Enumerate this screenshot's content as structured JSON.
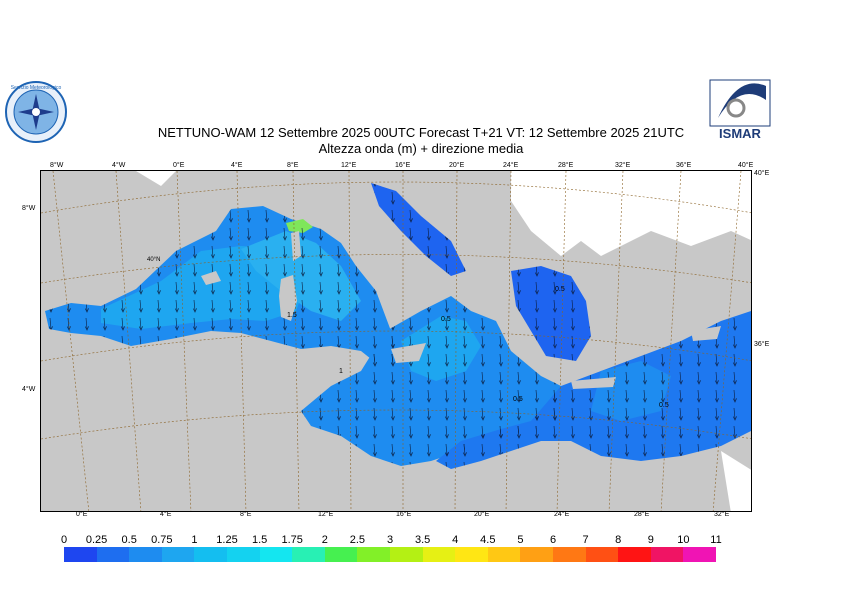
{
  "title": {
    "line1": "NETTUNO-WAM  12 Settembre 2025 00UTC Forecast T+21 VT: 12 Settembre 2025 21UTC",
    "line2": "Altezza onda (m) + direzione media"
  },
  "logos": {
    "left_name": "Servizio Meteorologico",
    "right_name": "ISMAR"
  },
  "map": {
    "top_lon_labels": [
      "8°W",
      "4°W",
      "0°E",
      "4°E",
      "8°E",
      "12°E",
      "16°E",
      "20°E",
      "24°E",
      "28°E",
      "32°E",
      "36°E",
      "40°E"
    ],
    "bottom_lon_labels": [
      "0°E",
      "4°E",
      "8°E",
      "12°E",
      "16°E",
      "20°E",
      "24°E",
      "28°E",
      "32°E"
    ],
    "left_lat_labels": [
      "8°W",
      "4°W"
    ],
    "right_lat_labels": [
      "40°E",
      "36°E"
    ],
    "inner_labels": [
      "40°N"
    ],
    "contour_labels": [
      "1.5",
      "1",
      "0.5",
      "0.5",
      "0.5",
      "0.5"
    ],
    "colors": {
      "land": "#c8c8c8",
      "land_outside": "#ffffff",
      "sea_low": "#1e64f0",
      "sea_mid": "#1e8cf0",
      "sea_high": "#2ab0f0",
      "hotspot": "#7fe65a"
    }
  },
  "legend": {
    "values": [
      "0",
      "0.25",
      "0.5",
      "0.75",
      "1",
      "1.25",
      "1.5",
      "1.75",
      "2",
      "2.5",
      "3",
      "3.5",
      "4",
      "4.5",
      "5",
      "6",
      "7",
      "8",
      "9",
      "10",
      "11"
    ],
    "colors": [
      "#1e46f0",
      "#1e6ef0",
      "#1e8cf0",
      "#1ea6f0",
      "#14bef0",
      "#14d2f0",
      "#14e6f0",
      "#28f0b4",
      "#46f050",
      "#82f028",
      "#b4f014",
      "#e6f014",
      "#ffe614",
      "#ffc814",
      "#ffa014",
      "#ff7814",
      "#ff5014",
      "#ff1414",
      "#f01464",
      "#f014b4"
    ]
  }
}
